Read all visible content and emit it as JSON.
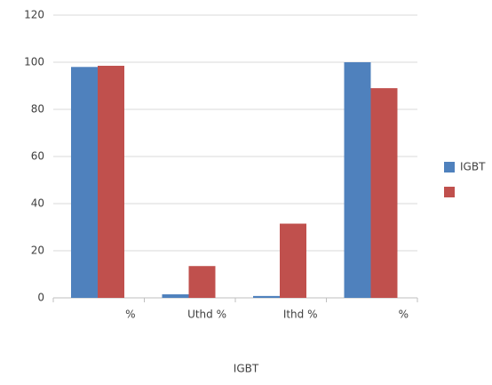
{
  "chart_data": {
    "type": "bar",
    "categories": [
      "%",
      "Uthd %",
      "Ithd %",
      "%"
    ],
    "series": [
      {
        "name": "IGBT",
        "color": "#4f81bd",
        "values": [
          98,
          1.5,
          0.8,
          100
        ]
      },
      {
        "color": "#c0504d",
        "values": [
          98.5,
          13.5,
          31.5,
          89
        ]
      }
    ],
    "xlabel": "IGBT",
    "ylim": [
      0,
      120
    ],
    "yticks": [
      0,
      20,
      40,
      60,
      80,
      100,
      120
    ],
    "grid": true,
    "legend": "right"
  }
}
